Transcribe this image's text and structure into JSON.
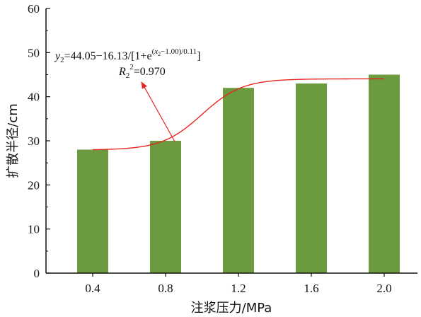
{
  "chart_data": {
    "type": "bar",
    "categories": [
      "0.4",
      "0.8",
      "1.2",
      "1.6",
      "2.0"
    ],
    "x": [
      0.4,
      0.8,
      1.2,
      1.6,
      2.0
    ],
    "values": [
      28,
      30,
      42,
      43,
      45
    ],
    "xlabel": "注浆压力/MPa",
    "ylabel": "扩散半径/cm",
    "ylim": [
      0,
      60
    ],
    "yticks": [
      0,
      10,
      20,
      30,
      40,
      50,
      60
    ],
    "grid": false,
    "bar_color": "#6b9a3f",
    "fit": {
      "equation": "y2=44.05−16.13/[1+e(x2−1.00)/0.11]",
      "r2_text": "R2²=0.970",
      "A": 44.05,
      "B": 16.13,
      "x0": 1.0,
      "dx": 0.11,
      "x_range": [
        0.4,
        2.0
      ],
      "color": "#e8251f"
    }
  }
}
